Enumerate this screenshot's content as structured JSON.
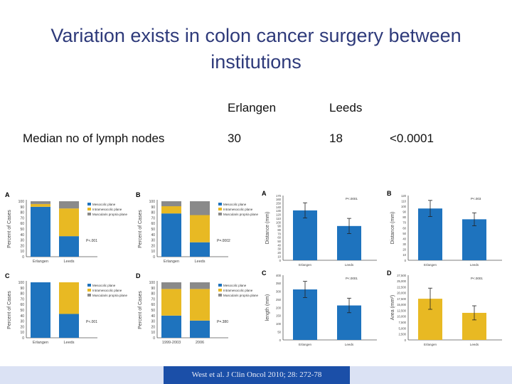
{
  "slide": {
    "title_line1": "Variation exists in colon cancer surgery between",
    "title_line2": "institutions"
  },
  "table": {
    "col1": "Erlangen",
    "col2": "Leeds",
    "row_label": "Median no of lymph nodes",
    "val1": "30",
    "val2": "18",
    "pvalue": "<0.0001"
  },
  "colors": {
    "blue": "#1e73be",
    "yellow": "#e8b923",
    "gray": "#8a8a8a",
    "title": "#2e3a7a"
  },
  "legend": [
    "Mesocolic plane",
    "Intramesocolic plane",
    "Muscularis propria plane"
  ],
  "chart_data": [
    {
      "type": "bar",
      "panel": "A",
      "stacked": true,
      "ylabel": "Percent of Cases",
      "ylim": [
        0,
        100
      ],
      "categories": [
        "Erlangen",
        "Leeds"
      ],
      "series": [
        {
          "name": "Mesocolic plane",
          "values": [
            90,
            37
          ]
        },
        {
          "name": "Intramesocolic plane",
          "values": [
            5,
            50
          ]
        },
        {
          "name": "Muscularis propria plane",
          "values": [
            5,
            13
          ]
        }
      ],
      "annotation": "P<.001"
    },
    {
      "type": "bar",
      "panel": "B",
      "stacked": true,
      "ylabel": "Percent of Cases",
      "ylim": [
        0,
        100
      ],
      "categories": [
        "Erlangen",
        "Leeds"
      ],
      "series": [
        {
          "name": "Mesocolic plane",
          "values": [
            78,
            26
          ]
        },
        {
          "name": "Intramesocolic plane",
          "values": [
            13,
            49
          ]
        },
        {
          "name": "Muscularis propria plane",
          "values": [
            9,
            25
          ]
        }
      ],
      "annotation": "P=.0002"
    },
    {
      "type": "bar",
      "panel": "C",
      "stacked": true,
      "ylabel": "Percent of Cases",
      "ylim": [
        0,
        100
      ],
      "categories": [
        "Erlangen",
        "Leeds"
      ],
      "series": [
        {
          "name": "Mesocolic plane",
          "values": [
            100,
            43
          ]
        },
        {
          "name": "Intramesocolic plane",
          "values": [
            0,
            57
          ]
        },
        {
          "name": "Muscularis propria plane",
          "values": [
            0,
            0
          ]
        }
      ],
      "annotation": "P<.001"
    },
    {
      "type": "bar",
      "panel": "D",
      "stacked": true,
      "ylabel": "Percent of Cases",
      "ylim": [
        0,
        100
      ],
      "categories": [
        "1999-2003",
        "2006"
      ],
      "series": [
        {
          "name": "Mesocolic plane",
          "values": [
            40,
            31
          ]
        },
        {
          "name": "Intramesocolic plane",
          "values": [
            48,
            57
          ]
        },
        {
          "name": "Muscularis propria plane",
          "values": [
            12,
            12
          ]
        }
      ],
      "annotation": "P=.380"
    },
    {
      "type": "bar",
      "panel": "A",
      "ylabel": "Distance (mm)",
      "ylim": [
        0,
        170
      ],
      "yticks": [
        0,
        10,
        20,
        30,
        40,
        50,
        60,
        70,
        80,
        90,
        100,
        110,
        120,
        130,
        140,
        150,
        160,
        170
      ],
      "categories": [
        "Erlangen",
        "Leeds"
      ],
      "values": [
        131,
        90
      ],
      "errors": [
        20,
        20
      ],
      "color": "#1e73be",
      "annotation": "P<.0001"
    },
    {
      "type": "bar",
      "panel": "B",
      "ylabel": "Distance (mm)",
      "ylim": [
        0,
        120
      ],
      "yticks": [
        0,
        10,
        20,
        30,
        40,
        50,
        60,
        70,
        80,
        90,
        100,
        110,
        120
      ],
      "categories": [
        "Erlangen",
        "Leeds"
      ],
      "values": [
        96,
        76
      ],
      "errors": [
        15,
        12
      ],
      "color": "#1e73be",
      "annotation": "P<.003"
    },
    {
      "type": "bar",
      "panel": "C",
      "ylabel": "length (mm)",
      "ylim": [
        0,
        400
      ],
      "yticks": [
        0,
        50,
        100,
        150,
        200,
        250,
        300,
        350,
        400
      ],
      "categories": [
        "Erlangen",
        "Leeds"
      ],
      "values": [
        312,
        213
      ],
      "errors": [
        50,
        45
      ],
      "color": "#1e73be",
      "annotation": "P<.0001"
    },
    {
      "type": "bar",
      "panel": "D",
      "ylabel": "Area (mm²)",
      "ylim": [
        0,
        27500
      ],
      "yticks": [
        0,
        2500,
        5000,
        7500,
        10000,
        12500,
        15000,
        17500,
        20000,
        22500,
        25000,
        27500
      ],
      "categories": [
        "Erlangen",
        "Leeds"
      ],
      "values": [
        17500,
        11500
      ],
      "errors": [
        4500,
        3000
      ],
      "color": "#e8b923",
      "annotation": "P<.0001"
    }
  ],
  "citation": "West et al. J Clin Oncol 2010; 28: 272-78"
}
